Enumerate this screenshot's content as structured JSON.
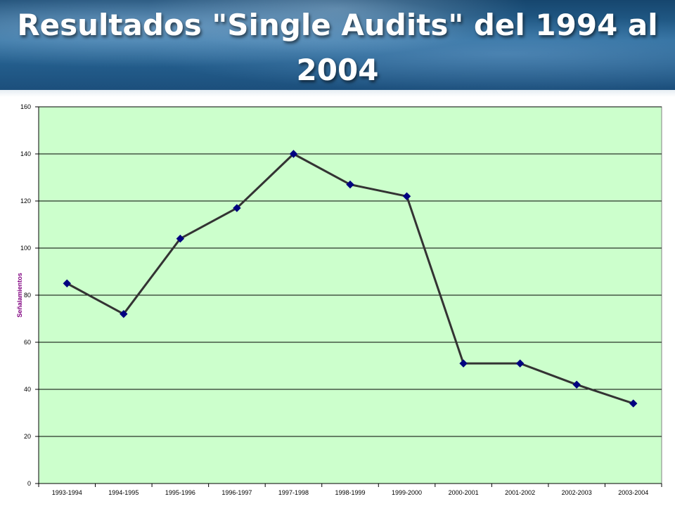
{
  "slide": {
    "title": "Resultados \"Single Audits\" del 1994 al 2004"
  },
  "colors": {
    "plot_background": "#ccffcc",
    "line": "#333333",
    "marker": "#000080",
    "ylabel": "#800080",
    "gridline": "#000000"
  },
  "chart_data": {
    "type": "line",
    "title": "",
    "xlabel": "",
    "ylabel": "Señalamientos",
    "ylim": [
      0,
      160
    ],
    "yticks": [
      0,
      20,
      40,
      60,
      80,
      100,
      120,
      140,
      160
    ],
    "grid": true,
    "legend": "none",
    "marker": "diamond",
    "categories": [
      "1993-1994",
      "1994-1995",
      "1995-1996",
      "1996-1997",
      "1997-1998",
      "1998-1999",
      "1999-2000",
      "2000-2001",
      "2001-2002",
      "2002-2003",
      "2003-2004"
    ],
    "series": [
      {
        "values": [
          85,
          72,
          104,
          117,
          140,
          127,
          122,
          51,
          51,
          42,
          34
        ]
      }
    ]
  }
}
